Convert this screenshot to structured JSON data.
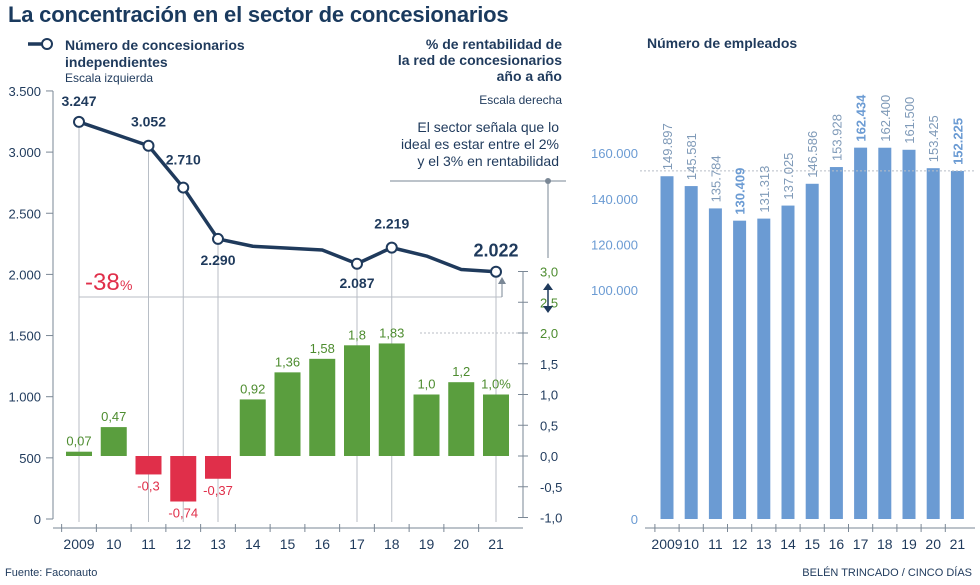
{
  "title": "La concentración en el sector de concesionarios",
  "source": "Fuente: Faconauto",
  "credit": "BELÉN TRINCADO / CINCO DÍAS",
  "colors": {
    "navy": "#1f3a5c",
    "green": "#5a9e3e",
    "green_text": "#4d8c2f",
    "red": "#e02f4a",
    "blue": "#6b9bd3",
    "blue_text": "#7f9ab8",
    "axis": "#7a8795",
    "gridline": "#b8bec6"
  },
  "chart_data": [
    {
      "type": "line",
      "title": "Número de concesionarios independientes",
      "subtitle": "Escala izquierda",
      "categories": [
        "2009",
        "10",
        "11",
        "12",
        "13",
        "14",
        "15",
        "16",
        "17",
        "18",
        "19",
        "20",
        "21"
      ],
      "values": [
        3247,
        3150,
        3052,
        2710,
        2290,
        2230,
        2215,
        2200,
        2087,
        2219,
        2150,
        2040,
        2022
      ],
      "data_labels": [
        {
          "index": 0,
          "label": "3.247"
        },
        {
          "index": 2,
          "label": "3.052"
        },
        {
          "index": 3,
          "label": "2.710"
        },
        {
          "index": 4,
          "label": "2.290"
        },
        {
          "index": 8,
          "label": "2.087"
        },
        {
          "index": 9,
          "label": "2.219"
        },
        {
          "index": 12,
          "label": "2.022"
        }
      ],
      "marker_indices": [
        0,
        2,
        3,
        4,
        8,
        9,
        12
      ],
      "ylim": [
        0,
        3500
      ],
      "yticks": [
        0,
        500,
        1000,
        1500,
        2000,
        2500,
        3000,
        3500
      ],
      "ytick_labels": [
        "0",
        "500",
        "1.000",
        "1.500",
        "2.000",
        "2.500",
        "3.000",
        "3.500"
      ],
      "change_annotation": {
        "value": "-38",
        "unit": "%"
      }
    },
    {
      "type": "bar",
      "title_lines": [
        "% de rentabilidad de",
        "la red de concesionarios",
        "año a año"
      ],
      "subtitle": "Escala derecha",
      "categories": [
        "2009",
        "10",
        "11",
        "12",
        "13",
        "14",
        "15",
        "16",
        "17",
        "18",
        "19",
        "20",
        "21"
      ],
      "values": [
        0.07,
        0.47,
        -0.3,
        -0.74,
        -0.37,
        0.92,
        1.36,
        1.58,
        1.8,
        1.83,
        1.0,
        1.2,
        1.0
      ],
      "data_labels": [
        "0,07",
        "0,47",
        "-0,3",
        "-0,74",
        "-0,37",
        "0,92",
        "1,36",
        "1,58",
        "1,8",
        "1,83",
        "1,0",
        "1,2",
        "1,0%"
      ],
      "ylim": [
        -1.0,
        3.0
      ],
      "yticks": [
        -1.0,
        -0.5,
        0.0,
        0.5,
        1.0,
        1.5,
        2.0,
        2.5,
        3.0
      ],
      "ytick_labels": [
        "-1,0",
        "-0,5",
        "0,0",
        "0,5",
        "1,0",
        "1,5",
        "2,0",
        "2,5",
        "3,0"
      ],
      "annotation_lines": [
        "El sector señala que lo",
        "ideal es estar entre el 2%",
        "y el 3% en rentabilidad"
      ],
      "ideal_range": [
        2.0,
        3.0
      ]
    },
    {
      "type": "bar",
      "title": "Número de empleados",
      "categories": [
        "2009",
        "10",
        "11",
        "12",
        "13",
        "14",
        "15",
        "16",
        "17",
        "18",
        "19",
        "20",
        "21"
      ],
      "values": [
        149897,
        145581,
        135784,
        130409,
        131313,
        137025,
        146586,
        153928,
        162434,
        162400,
        161500,
        153425,
        152225
      ],
      "data_labels": [
        "149.897",
        "145.581",
        "135.784",
        "130.409",
        "131.313",
        "137.025",
        "146.586",
        "153.928",
        "162.434",
        "162.400",
        "161.500",
        "153.425",
        "152.225"
      ],
      "bold_labels": [
        3,
        8,
        12
      ],
      "ylim": [
        0,
        180000
      ],
      "axis_break": true,
      "yticks": [
        0,
        100000,
        120000,
        140000,
        160000
      ],
      "ytick_labels": [
        "0",
        "100.000",
        "120.000",
        "140.000",
        "160.000"
      ],
      "reference_value": 152225
    }
  ]
}
